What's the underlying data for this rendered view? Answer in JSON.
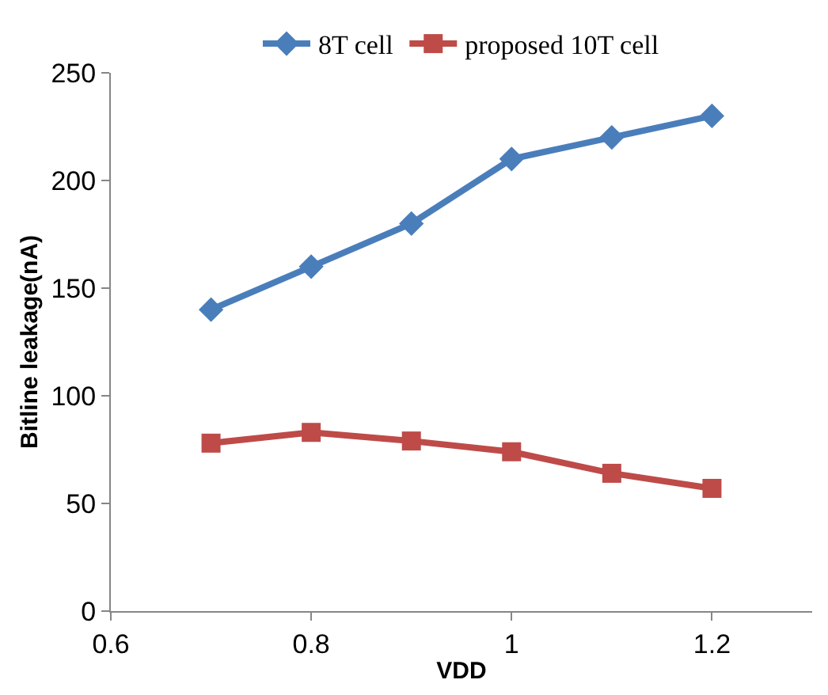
{
  "chart_data": {
    "type": "line",
    "xlabel": "VDD",
    "ylabel": "Bitline leakage(nA)",
    "x": [
      0.7,
      0.8,
      0.9,
      1.0,
      1.1,
      1.2
    ],
    "series": [
      {
        "name": "8T cell",
        "color": "#4a7ebb",
        "values": [
          140,
          160,
          180,
          210,
          220,
          230
        ],
        "marker": "diamond"
      },
      {
        "name": "proposed 10T cell",
        "color": "#be4b48",
        "values": [
          78,
          83,
          79,
          74,
          64,
          57
        ],
        "marker": "square"
      }
    ],
    "xlim": [
      0.6,
      1.3
    ],
    "xticks": [
      0.6,
      0.8,
      {
        "value": 1.0,
        "label": "1"
      },
      1.2
    ],
    "ylim": [
      0,
      250
    ],
    "yticks": [
      0,
      50,
      100,
      150,
      200,
      250
    ],
    "legend": "top",
    "line_style": "solid"
  }
}
